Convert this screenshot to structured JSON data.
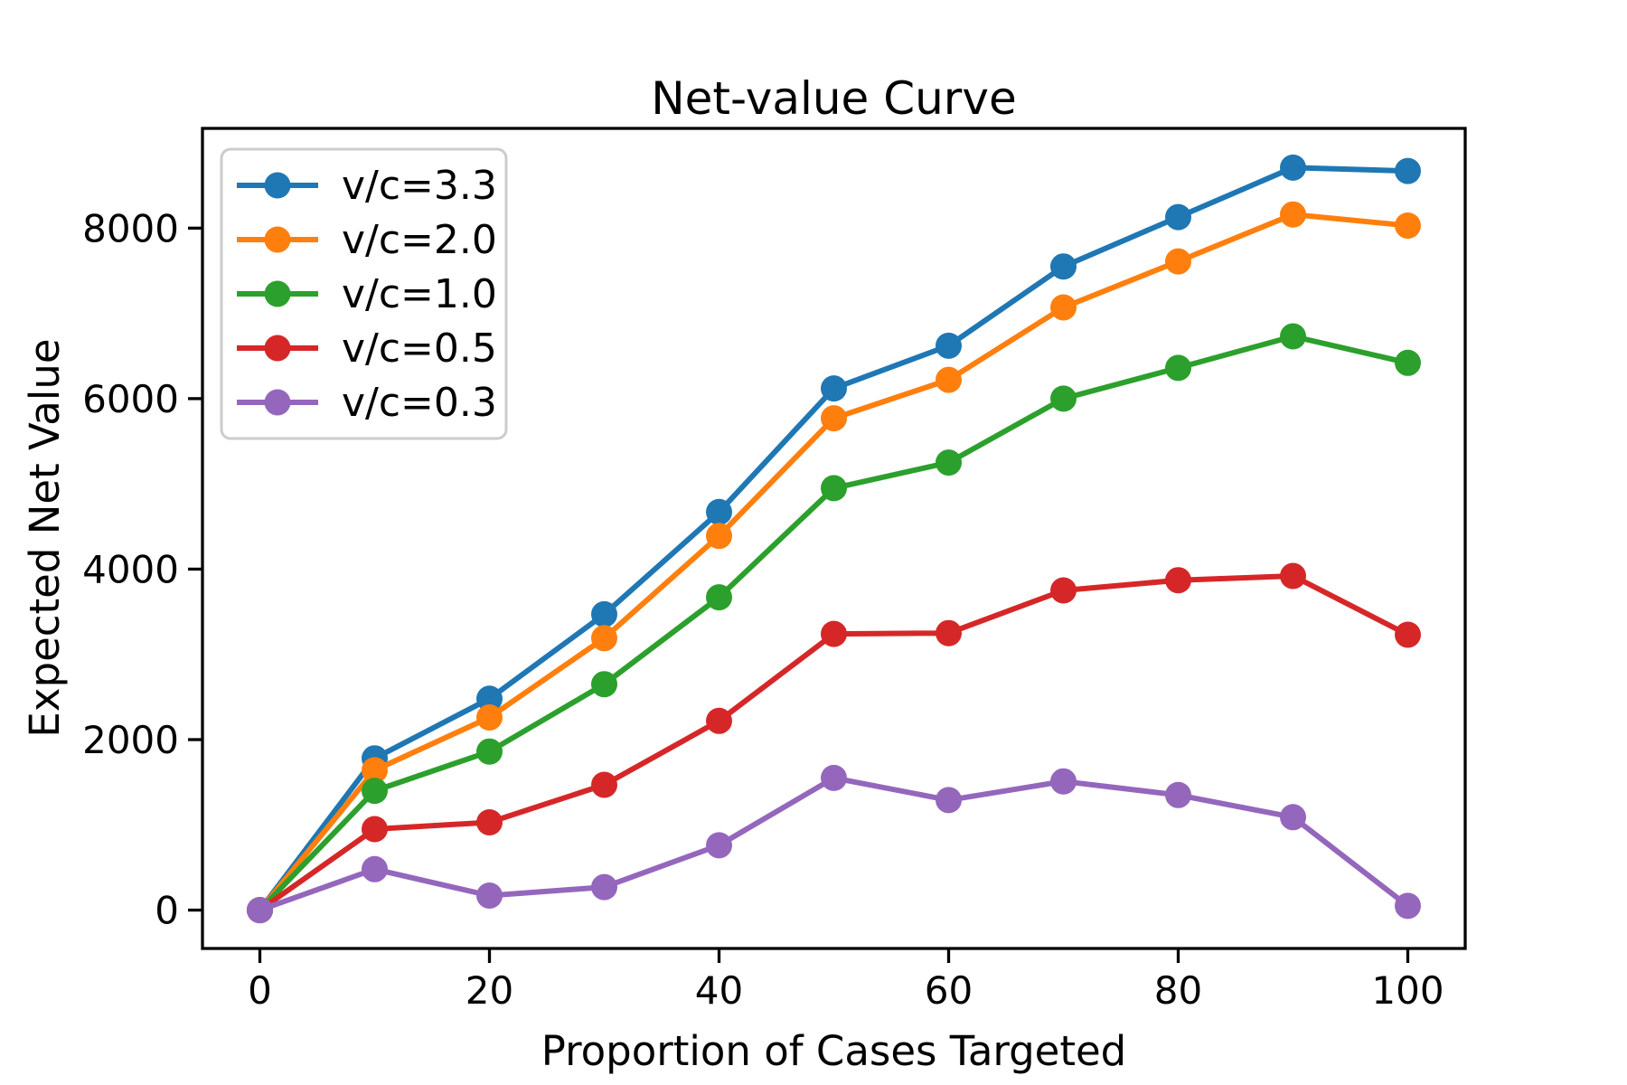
{
  "chart_data": {
    "type": "line",
    "title": "Net-value Curve",
    "xlabel": "Proportion of Cases Targeted",
    "ylabel": "Expected Net Value",
    "x": [
      0,
      10,
      20,
      30,
      40,
      50,
      60,
      70,
      80,
      90,
      100
    ],
    "series": [
      {
        "name": "v/c=3.3",
        "color": "#1f77b4",
        "values": [
          0,
          1780,
          2480,
          3470,
          4670,
          6120,
          6620,
          7550,
          8130,
          8710,
          8670
        ]
      },
      {
        "name": "v/c=2.0",
        "color": "#ff7f0e",
        "values": [
          0,
          1640,
          2260,
          3190,
          4390,
          5770,
          6220,
          7070,
          7610,
          8160,
          8030
        ]
      },
      {
        "name": "v/c=1.0",
        "color": "#2ca02c",
        "values": [
          0,
          1400,
          1860,
          2650,
          3670,
          4950,
          5250,
          6000,
          6360,
          6730,
          6420
        ]
      },
      {
        "name": "v/c=0.5",
        "color": "#d62728",
        "values": [
          0,
          950,
          1030,
          1470,
          2220,
          3240,
          3250,
          3750,
          3870,
          3920,
          3230
        ]
      },
      {
        "name": "v/c=0.3",
        "color": "#9467bd",
        "values": [
          0,
          480,
          170,
          270,
          760,
          1550,
          1290,
          1510,
          1350,
          1090,
          50
        ]
      }
    ],
    "xticks": [
      0,
      20,
      40,
      60,
      80,
      100
    ],
    "yticks": [
      0,
      2000,
      4000,
      6000,
      8000
    ],
    "xlim": [
      -5,
      105
    ],
    "ylim": [
      -450,
      9170
    ],
    "grid": false,
    "legend_position": "upper left",
    "marker": "circle",
    "line_width": 6,
    "marker_radius": 14.5,
    "axis_color": "#000000",
    "tick_label_color": "#000000",
    "background": "#ffffff",
    "legend_border_color": "#cccccc",
    "legend_background": "#ffffff"
  }
}
